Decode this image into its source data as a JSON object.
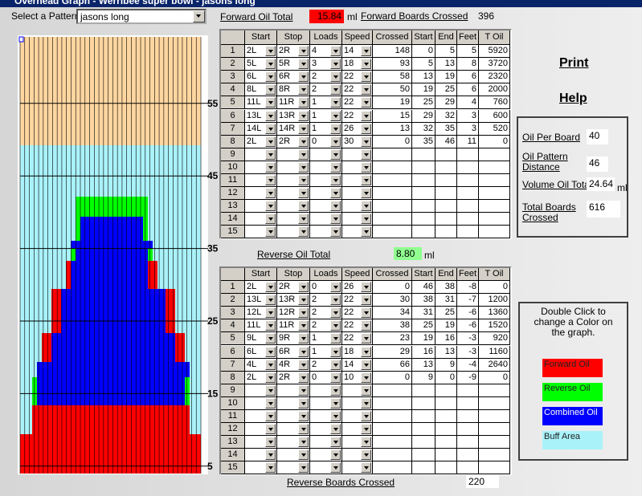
{
  "window_title": "Overhead Graph - Werribee super bowl - jasons long",
  "pattern_label": "Select a Pattern",
  "pattern": "jasons long",
  "forward_oil_total": {
    "label": "Forward Oil Total",
    "value": "15.84",
    "unit": "ml"
  },
  "forward_boards_crossed": {
    "label": "Forward Boards Crossed",
    "value": "396"
  },
  "graph": {
    "distance_labels": [
      55,
      45,
      35,
      25,
      15,
      5
    ]
  },
  "columns": [
    "Start",
    "Stop",
    "Loads",
    "Speed",
    "Crossed",
    "Start",
    "End",
    "Feet",
    "T  Oil"
  ],
  "row_numbers": [
    1,
    2,
    3,
    4,
    5,
    6,
    7,
    8,
    9,
    10,
    11,
    12,
    13,
    14,
    15
  ],
  "forward_table": {
    "rows": [
      [
        "2L",
        "2R",
        4,
        14,
        148,
        0,
        5,
        5,
        5920
      ],
      [
        "5L",
        "5R",
        3,
        18,
        93,
        5,
        13,
        8,
        3720
      ],
      [
        "6L",
        "6R",
        2,
        22,
        58,
        13,
        19,
        6,
        2320
      ],
      [
        "8L",
        "8R",
        2,
        22,
        50,
        19,
        25,
        6,
        2000
      ],
      [
        "11L",
        "11R",
        1,
        22,
        19,
        25,
        29,
        4,
        760
      ],
      [
        "13L",
        "13R",
        1,
        22,
        15,
        29,
        32,
        3,
        600
      ],
      [
        "14L",
        "14R",
        1,
        26,
        13,
        32,
        35,
        3,
        520
      ],
      [
        "2L",
        "2R",
        0,
        30,
        0,
        35,
        46,
        11,
        0
      ]
    ]
  },
  "reverse_oil_total": {
    "label": "Reverse Oil Total",
    "value": "8.80",
    "unit": "ml"
  },
  "reverse_table": {
    "rows": [
      [
        "2L",
        "2R",
        0,
        26,
        0,
        46,
        38,
        -8,
        0
      ],
      [
        "13L",
        "13R",
        2,
        22,
        30,
        38,
        31,
        -7,
        1200
      ],
      [
        "12L",
        "12R",
        2,
        22,
        34,
        31,
        25,
        -6,
        1360
      ],
      [
        "11L",
        "11R",
        2,
        22,
        38,
        25,
        19,
        -6,
        1520
      ],
      [
        "9L",
        "9R",
        1,
        22,
        23,
        19,
        16,
        -3,
        920
      ],
      [
        "6L",
        "6R",
        1,
        18,
        29,
        16,
        13,
        -3,
        1160
      ],
      [
        "4L",
        "4R",
        2,
        14,
        66,
        13,
        9,
        -4,
        2640
      ],
      [
        "2L",
        "2R",
        0,
        10,
        0,
        9,
        0,
        -9,
        0
      ]
    ]
  },
  "reverse_boards_crossed": {
    "label": "Reverse Boards Crossed",
    "value": "220"
  },
  "links": [
    "Print",
    "Help"
  ],
  "settings": {
    "oil_per_board": {
      "label": "Oil Per Board",
      "value": "40"
    },
    "oil_pattern_distance": {
      "label": "Oil Pattern Distance",
      "value": "46"
    },
    "volume_oil_total": {
      "label": "Volume Oil Total",
      "value": "24.64",
      "unit": "ml"
    },
    "total_boards_crossed": {
      "label": "Total Boards Crossed",
      "value": "616"
    }
  },
  "legend": {
    "instructions": "Double Click  to change a Color on the graph.",
    "items": [
      {
        "label": "Forward Oil",
        "color": "#ff0000"
      },
      {
        "label": "Reverse Oil",
        "color": "#00ff00"
      },
      {
        "label": "Combined Oil",
        "color": "#0000ff"
      },
      {
        "label": "Buff Area",
        "color": "#aaf2fa"
      }
    ]
  }
}
